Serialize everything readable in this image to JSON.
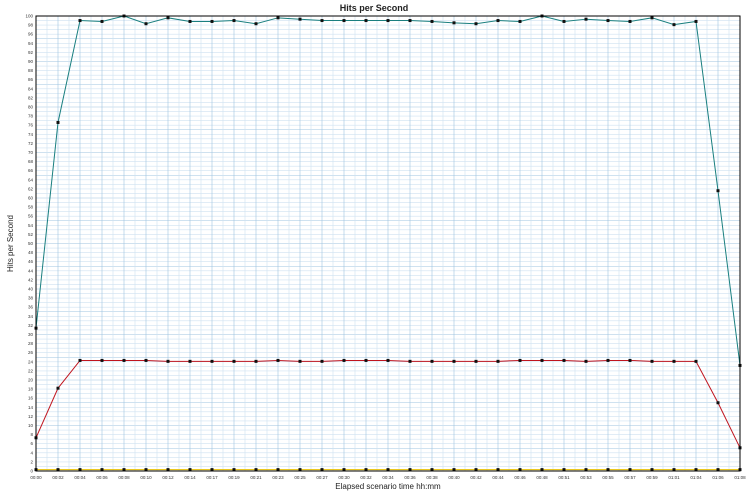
{
  "chart_data": {
    "type": "line",
    "title": "Hits per Second",
    "xlabel": "Elapsed scenario time hh:mm",
    "ylabel": "Hits per Second",
    "xlim": [
      0,
      32
    ],
    "ylim": [
      0,
      100
    ],
    "grid": true,
    "x_ticks": [
      "00:00",
      "00:02",
      "00:04",
      "00:06",
      "00:08",
      "00:10",
      "00:12",
      "00:14",
      "00:17",
      "00:19",
      "00:21",
      "00:23",
      "00:25",
      "00:27",
      "00:30",
      "00:32",
      "00:34",
      "00:36",
      "00:38",
      "00:40",
      "00:42",
      "00:44",
      "00:46",
      "00:48",
      "00:51",
      "00:53",
      "00:55",
      "00:57",
      "00:59",
      "01:01",
      "01:04",
      "01:06",
      "01:08"
    ],
    "x": [
      0,
      1,
      2,
      3,
      4,
      5,
      6,
      7,
      8,
      9,
      10,
      11,
      12,
      13,
      14,
      15,
      16,
      17,
      18,
      19,
      20,
      21,
      22,
      23,
      24,
      25,
      26,
      27,
      28,
      29,
      30,
      31,
      32
    ],
    "series": [
      {
        "color": "#1a7f7f",
        "values": [
          31.4,
          76.6,
          99.0,
          98.8,
          100.0,
          98.3,
          99.6,
          98.8,
          98.8,
          99.0,
          98.3,
          99.6,
          99.3,
          99.0,
          99.0,
          99.0,
          99.0,
          99.0,
          98.8,
          98.5,
          98.3,
          99.0,
          98.8,
          100.0,
          98.8,
          99.3,
          99.0,
          98.8,
          99.6,
          98.1,
          98.8,
          61.6,
          23.2
        ]
      },
      {
        "color": "#c0141e",
        "values": [
          7.3,
          18.2,
          24.3,
          24.3,
          24.3,
          24.3,
          24.1,
          24.1,
          24.1,
          24.1,
          24.1,
          24.3,
          24.1,
          24.1,
          24.3,
          24.3,
          24.3,
          24.1,
          24.1,
          24.1,
          24.1,
          24.1,
          24.3,
          24.3,
          24.3,
          24.1,
          24.3,
          24.3,
          24.1,
          24.1,
          24.1,
          15.0,
          5.1
        ]
      },
      {
        "color": "#e8c000",
        "values": [
          0.3,
          0.3,
          0.3,
          0.3,
          0.3,
          0.3,
          0.3,
          0.3,
          0.3,
          0.3,
          0.3,
          0.3,
          0.3,
          0.3,
          0.3,
          0.3,
          0.3,
          0.3,
          0.3,
          0.3,
          0.3,
          0.3,
          0.3,
          0.3,
          0.3,
          0.3,
          0.3,
          0.3,
          0.3,
          0.3,
          0.3,
          0.3,
          0.3
        ]
      }
    ]
  }
}
